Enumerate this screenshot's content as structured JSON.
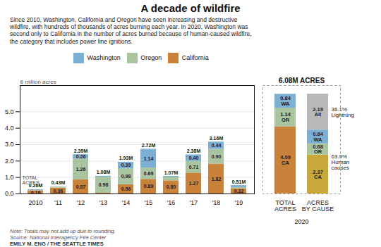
{
  "chart_data": [
    {
      "type": "bar",
      "stacked": true,
      "title": "A decade of wildfire",
      "subtitle": "Since 2010, Washington, California and Oregon have seen increasing and destructive\nwildfire, with hundreds of thousands of acres burning each year. In 2020, Washington was\nsecond only to California in the number of acres burned because of human-caused wildfire,\nthe category that includes power line ignitions.",
      "ylabel": "6 million acres",
      "annotations": [
        "TOTAL\nACRES"
      ],
      "notes": [
        "Note: Totals may not add up due to rounding.",
        "Source: National Interagency Fire Center",
        "EMILY M. ENG / THE SEATTLE TIMES"
      ],
      "categories": [
        "2010",
        "'11",
        "'12",
        "'13",
        "'14",
        "'15",
        "'16",
        "'17",
        "'18",
        "'19"
      ],
      "ylim": [
        0,
        6.6
      ],
      "yticks": [
        0,
        1,
        2,
        3,
        4,
        5
      ],
      "grid": true,
      "legend": "top",
      "data_labels": true,
      "series": [
        {
          "name": "Washington",
          "color": "#7bafd4",
          "values": [
            0.04,
            0.02,
            0.26,
            0.06,
            0.39,
            1.14,
            0.05,
            0.4,
            0.44,
            0.12
          ],
          "value_labels": [
            null,
            null,
            "0.26",
            null,
            "0.39",
            "1.14",
            null,
            "0.40",
            "0.44",
            null
          ]
        },
        {
          "name": "Oregon",
          "color": "#a8c5a0",
          "values": [
            0.03,
            0.05,
            1.26,
            0.98,
            0.98,
            0.69,
            0.22,
            0.71,
            0.9,
            0.07
          ],
          "value_labels": [
            null,
            null,
            "1.26",
            "0.98",
            "0.98",
            "0.69",
            null,
            "0.71",
            "0.90",
            null
          ]
        },
        {
          "name": "California",
          "color": "#c8823a",
          "values": [
            0.19,
            0.36,
            0.87,
            0.04,
            0.56,
            0.89,
            0.8,
            1.27,
            1.82,
            0.32
          ],
          "value_labels": [
            "0.19",
            "0.36",
            "0.87",
            null,
            "0.56",
            "0.89",
            "0.80",
            "1.27",
            "1.82",
            "0.32"
          ]
        }
      ],
      "totals": [
        0.26,
        0.43,
        2.39,
        1.08,
        1.93,
        2.72,
        1.07,
        2.38,
        3.16,
        0.51
      ],
      "totals_labels": [
        "0.26M",
        "0.43M",
        "2.39M",
        "1.08M",
        "1.93M",
        "2.72M",
        "1.07M",
        "2.38M",
        "3.16M",
        "0.51M"
      ]
    },
    {
      "type": "bar",
      "stacked": true,
      "title": "6.08M ACRES",
      "xlabel": "2020",
      "categories": [
        "TOTAL\nACRES",
        "ACRES\nBY CAUSE"
      ],
      "ylim": [
        0,
        6.6
      ],
      "tick_labels": "x",
      "data_labels": true,
      "annotations": [
        "36.1%\nLightning",
        "63.9%\nHuman\ncauses"
      ],
      "series": [
        {
          "name": "CA",
          "colors": [
            "#c8823a",
            "#c8a838"
          ],
          "values": [
            4.09,
            2.37
          ],
          "value_labels": [
            "4.09\nCA",
            "2.37\nCA"
          ]
        },
        {
          "name": "OR",
          "color": "#a8c5a0",
          "values": [
            1.14,
            0.68
          ],
          "value_labels": [
            "1.14\nOR",
            "0.68\nOR"
          ]
        },
        {
          "name": "WA",
          "color": "#7bafd4",
          "values": [
            0.84,
            0.84
          ],
          "value_labels": [
            "0.84\nWA",
            "0.84\nWA"
          ]
        },
        {
          "name": "All",
          "color": "#b8b8b8",
          "values": [
            null,
            2.19
          ],
          "value_labels": [
            null,
            "2.19\nAll"
          ]
        }
      ]
    }
  ]
}
